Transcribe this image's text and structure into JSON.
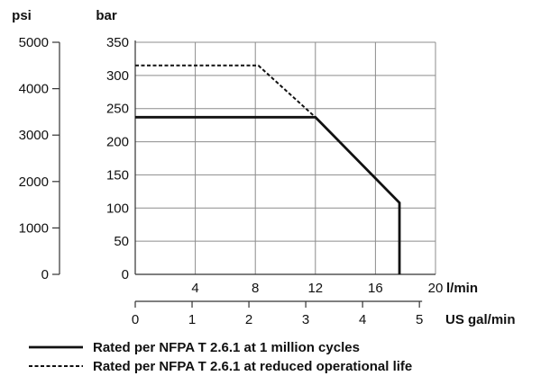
{
  "chart_data": {
    "type": "line",
    "title": "",
    "axes": {
      "psi": {
        "label": "psi",
        "ticks": [
          0,
          1000,
          2000,
          3000,
          4000,
          5000
        ],
        "range": [
          0,
          5000
        ]
      },
      "bar": {
        "label": "bar",
        "ticks": [
          0,
          50,
          100,
          150,
          200,
          250,
          300,
          350
        ],
        "range": [
          0,
          350
        ]
      },
      "lmin": {
        "label": "l/min",
        "ticks": [
          4,
          8,
          12,
          16,
          20
        ],
        "range": [
          0,
          20
        ]
      },
      "gal": {
        "label": "US gal/min",
        "ticks": [
          0,
          1,
          2,
          3,
          4,
          5
        ],
        "range": [
          0,
          5.283
        ]
      }
    },
    "grid": true,
    "legend_position": "bottom-left",
    "series": [
      {
        "name": "Rated per NFPA T 2.6.1 at 1 million cycles",
        "style": "solid",
        "x_unit": "l/min",
        "y_unit": "bar",
        "points": [
          [
            0,
            237
          ],
          [
            12,
            237
          ],
          [
            17.6,
            108
          ],
          [
            17.6,
            0
          ]
        ]
      },
      {
        "name": "Rated per NFPA T 2.6.1 at reduced operational life",
        "style": "dashed",
        "x_unit": "l/min",
        "y_unit": "bar",
        "points": [
          [
            0,
            315
          ],
          [
            8.2,
            315
          ],
          [
            12,
            237
          ]
        ]
      }
    ]
  }
}
